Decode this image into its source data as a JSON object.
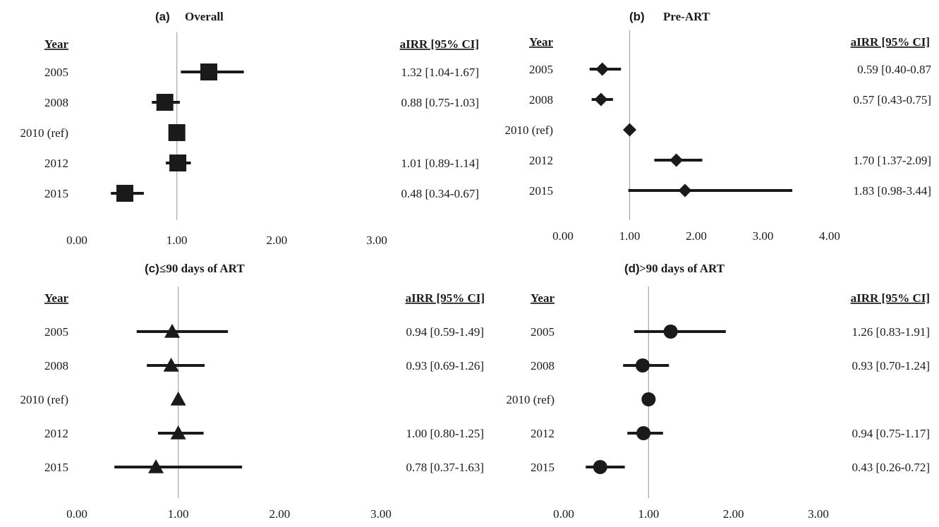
{
  "chart_data": [
    {
      "type": "forest",
      "label": "(a)",
      "title": "Overall",
      "row_header": "Year",
      "value_header": "aIRR [95% CI]",
      "marker": "square",
      "xlim": [
        0,
        3
      ],
      "xticks": [
        "0.00",
        "1.00",
        "2.00",
        "3.00"
      ],
      "reference_value": 1.0,
      "rows": [
        {
          "label": "2005",
          "value": 1.32,
          "low": 1.04,
          "high": 1.67,
          "text": "1.32 [1.04-1.67]"
        },
        {
          "label": "2008",
          "value": 0.88,
          "low": 0.75,
          "high": 1.03,
          "text": "0.88 [0.75-1.03]"
        },
        {
          "label": "2010 (ref)",
          "value": 1.0,
          "low": null,
          "high": null,
          "text": ""
        },
        {
          "label": "2012",
          "value": 1.01,
          "low": 0.89,
          "high": 1.14,
          "text": "1.01 [0.89-1.14]"
        },
        {
          "label": "2015",
          "value": 0.48,
          "low": 0.34,
          "high": 0.67,
          "text": "0.48 [0.34-0.67]"
        }
      ]
    },
    {
      "type": "forest",
      "label": "(b)",
      "title": "Pre-ART",
      "row_header": "Year",
      "value_header": "aIRR [95% CI]",
      "marker": "diamond",
      "xlim": [
        0,
        4
      ],
      "xticks": [
        "0.00",
        "1.00",
        "2.00",
        "3.00",
        "4.00"
      ],
      "reference_value": 1.0,
      "rows": [
        {
          "label": "2005",
          "value": 0.59,
          "low": 0.4,
          "high": 0.87,
          "text": "0.59 [0.40-0.87"
        },
        {
          "label": "2008",
          "value": 0.57,
          "low": 0.43,
          "high": 0.75,
          "text": "0.57 [0.43-0.75]"
        },
        {
          "label": "2010 (ref)",
          "value": 1.0,
          "low": null,
          "high": null,
          "text": ""
        },
        {
          "label": "2012",
          "value": 1.7,
          "low": 1.37,
          "high": 2.09,
          "text": "1.70 [1.37-2.09]"
        },
        {
          "label": "2015",
          "value": 1.83,
          "low": 0.98,
          "high": 3.44,
          "text": "1.83 [0.98-3.44]"
        }
      ]
    },
    {
      "type": "forest",
      "label": "(c)",
      "title": "≤90 days of ART",
      "row_header": "Year",
      "value_header": "aIRR [95% CI]",
      "marker": "triangle",
      "xlim": [
        0,
        3
      ],
      "xticks": [
        "0.00",
        "1.00",
        "2.00",
        "3.00"
      ],
      "reference_value": 1.0,
      "rows": [
        {
          "label": "2005",
          "value": 0.94,
          "low": 0.59,
          "high": 1.49,
          "text": "0.94 [0.59-1.49]"
        },
        {
          "label": "2008",
          "value": 0.93,
          "low": 0.69,
          "high": 1.26,
          "text": "0.93 [0.69-1.26]"
        },
        {
          "label": "2010 (ref)",
          "value": 1.0,
          "low": null,
          "high": null,
          "text": ""
        },
        {
          "label": "2012",
          "value": 1.0,
          "low": 0.8,
          "high": 1.25,
          "text": "1.00 [0.80-1.25]"
        },
        {
          "label": "2015",
          "value": 0.78,
          "low": 0.37,
          "high": 1.63,
          "text": "0.78 [0.37-1.63]"
        }
      ]
    },
    {
      "type": "forest",
      "label": "(d)",
      "title": ">90 days of ART",
      "row_header": "Year",
      "value_header": "aIRR [95% CI]",
      "marker": "circle",
      "xlim": [
        0,
        3
      ],
      "xticks": [
        "0.00",
        "1.00",
        "2.00",
        "3.00"
      ],
      "reference_value": 1.0,
      "rows": [
        {
          "label": "2005",
          "value": 1.26,
          "low": 0.83,
          "high": 1.91,
          "text": "1.26 [0.83-1.91]"
        },
        {
          "label": "2008",
          "value": 0.93,
          "low": 0.7,
          "high": 1.24,
          "text": "0.93 [0.70-1.24]"
        },
        {
          "label": "2010 (ref)",
          "value": 1.0,
          "low": null,
          "high": null,
          "text": ""
        },
        {
          "label": "2012",
          "value": 0.94,
          "low": 0.75,
          "high": 1.17,
          "text": "0.94 [0.75-1.17]"
        },
        {
          "label": "2015",
          "value": 0.43,
          "low": 0.26,
          "high": 0.72,
          "text": "0.43 [0.26-0.72]"
        }
      ]
    }
  ],
  "colors": {
    "marker": "#1a1a1a",
    "reference_line": "#a6a6a6",
    "text": "#1a1a1a"
  }
}
